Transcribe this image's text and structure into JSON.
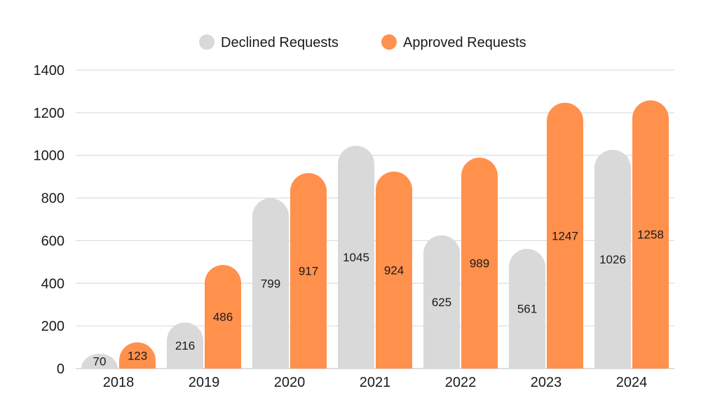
{
  "chart_data": {
    "type": "bar",
    "categories": [
      "2018",
      "2019",
      "2020",
      "2021",
      "2022",
      "2023",
      "2024"
    ],
    "series": [
      {
        "name": "Declined Requests",
        "color": "#d9d9d9",
        "values": [
          70,
          216,
          799,
          1045,
          625,
          561,
          1026
        ]
      },
      {
        "name": "Approved Requests",
        "color": "#ff914d",
        "values": [
          123,
          486,
          917,
          924,
          989,
          1247,
          1258
        ]
      }
    ],
    "ylim": [
      0,
      1400
    ],
    "yticks": [
      0,
      200,
      400,
      600,
      800,
      1000,
      1200,
      1400
    ],
    "grid": true,
    "legend_position": "top-center",
    "bar_shape": "rounded-top"
  }
}
